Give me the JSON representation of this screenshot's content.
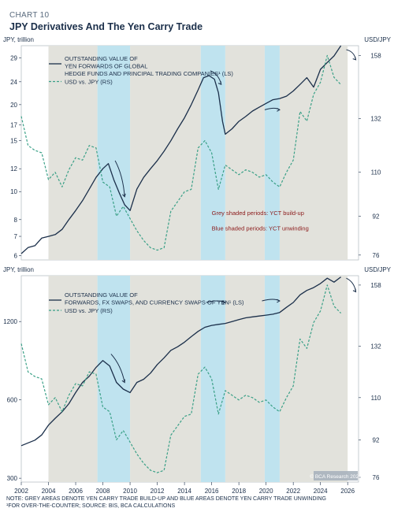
{
  "header": {
    "kicker": "CHART 10",
    "title": "JPY Derivatives And The Yen Carry Trade"
  },
  "notes": {
    "line1": "NOTE: GREY AREAS DENOTE YEN CARRY TRADE BUILD-UP AND BLUE AREAS DENOTE YEN CARRY TRADE UNWINDING",
    "line2": "¹FOR OVER-THE-COUNTER; SOURCE: BIS, BCA CALCULATIONS",
    "source_tag": "© BCA Research 2026"
  },
  "colors": {
    "grey_shade": "#e2e2dc",
    "blue_shade": "#bfe3ef",
    "line_dark": "#1b2f4a",
    "line_usdjpy": "#3aa087",
    "annotation": "#8b1a1a"
  },
  "chart_data": [
    {
      "type": "line",
      "left_unit": "JPY, trillion",
      "right_unit": "USD/JPY",
      "x_ticks": [
        "2002",
        "2004",
        "2006",
        "2008",
        "2010",
        "2012",
        "2014",
        "2016",
        "2018",
        "2020",
        "2022",
        "2024",
        "2026"
      ],
      "xlim": [
        2002,
        2026.8
      ],
      "y_left": {
        "scale": "log",
        "ylim": [
          5.8,
          32
        ],
        "ticks": [
          6,
          7,
          8,
          10,
          12,
          15,
          17,
          20,
          24,
          29
        ]
      },
      "y_right": {
        "ylim": [
          74,
          162
        ],
        "ticks": [
          76,
          92,
          110,
          132,
          158
        ]
      },
      "shaded_periods": {
        "grey": [
          [
            2004.0,
            2007.6
          ],
          [
            2010.0,
            2015.2
          ],
          [
            2017.0,
            2019.9
          ],
          [
            2021.0,
            2026.0
          ]
        ],
        "blue": [
          [
            2007.6,
            2010.0
          ],
          [
            2015.2,
            2017.0
          ],
          [
            2019.9,
            2021.0
          ]
        ]
      },
      "annotations": [
        "Grey shaded periods: YCT build-up",
        "Blue shaded periods: YCT unwinding"
      ],
      "series": [
        {
          "name": "OUTSTANDING VALUE OF YEN FORWARDS OF GLOBAL HEDGE FUNDS AND PRINCIPAL TRADING COMPANIES¹ (LS)",
          "axis": "left",
          "style": "solid",
          "x": [
            2002.0,
            2002.5,
            2003.0,
            2003.5,
            2004.0,
            2004.5,
            2005.0,
            2005.5,
            2006.0,
            2006.5,
            2007.0,
            2007.5,
            2008.0,
            2008.4,
            2008.8,
            2009.2,
            2009.6,
            2010.0,
            2010.5,
            2011.0,
            2011.5,
            2012.0,
            2012.5,
            2013.0,
            2013.5,
            2014.0,
            2014.5,
            2015.0,
            2015.4,
            2015.8,
            2016.2,
            2016.5,
            2016.8,
            2017.0,
            2017.5,
            2018.0,
            2018.5,
            2019.0,
            2019.5,
            2020.0,
            2020.5,
            2021.0,
            2021.5,
            2022.0,
            2022.5,
            2023.0,
            2023.5,
            2024.0,
            2024.5,
            2025.0,
            2025.5
          ],
          "values": [
            6.1,
            6.4,
            6.5,
            6.9,
            7.0,
            7.1,
            7.4,
            8.0,
            8.6,
            9.3,
            10.2,
            11.2,
            12.0,
            12.5,
            11.0,
            9.9,
            9.0,
            8.6,
            10.2,
            11.2,
            12.0,
            12.8,
            13.8,
            15.0,
            16.5,
            18.0,
            20.0,
            22.5,
            24.8,
            25.2,
            24.5,
            22.0,
            17.5,
            15.8,
            16.5,
            17.5,
            18.2,
            19.0,
            19.6,
            20.2,
            20.8,
            21.0,
            21.4,
            22.3,
            23.5,
            24.8,
            23.0,
            26.5,
            28.0,
            29.5,
            32.0
          ]
        },
        {
          "name": "USD vs. JPY (RS)",
          "axis": "right",
          "style": "dashed",
          "x": [
            2002.0,
            2002.5,
            2003.0,
            2003.5,
            2004.0,
            2004.5,
            2005.0,
            2005.5,
            2006.0,
            2006.5,
            2007.0,
            2007.5,
            2008.0,
            2008.5,
            2009.0,
            2009.5,
            2010.0,
            2010.5,
            2011.0,
            2011.5,
            2012.0,
            2012.5,
            2013.0,
            2013.5,
            2014.0,
            2014.5,
            2015.0,
            2015.5,
            2016.0,
            2016.5,
            2017.0,
            2017.5,
            2018.0,
            2018.5,
            2019.0,
            2019.5,
            2020.0,
            2020.5,
            2021.0,
            2021.5,
            2022.0,
            2022.5,
            2023.0,
            2023.5,
            2024.0,
            2024.5,
            2025.0,
            2025.5
          ],
          "values": [
            133,
            121,
            119,
            118,
            107,
            110,
            104,
            111,
            116,
            115,
            121,
            120,
            106,
            104,
            92,
            96,
            91,
            86,
            82,
            79,
            78,
            79,
            94,
            98,
            102,
            103,
            120,
            123,
            118,
            103,
            113,
            111,
            109,
            111,
            110,
            108,
            109,
            106,
            104,
            110,
            115,
            135,
            131,
            142,
            147,
            158,
            149,
            146
          ]
        }
      ]
    },
    {
      "type": "line",
      "left_unit": "JPY, trillion",
      "right_unit": "USD/JPY",
      "x_ticks": [
        "2002",
        "2004",
        "2006",
        "2008",
        "2010",
        "2012",
        "2014",
        "2016",
        "2018",
        "2020",
        "2022",
        "2024",
        "2026"
      ],
      "xlim": [
        2002,
        2026.8
      ],
      "y_left": {
        "scale": "log",
        "ylim": [
          290,
          1800
        ],
        "ticks": [
          300,
          600,
          1200
        ]
      },
      "y_right": {
        "ylim": [
          74,
          162
        ],
        "ticks": [
          76,
          92,
          110,
          132,
          158
        ]
      },
      "shaded_periods": {
        "grey": [
          [
            2004.0,
            2007.6
          ],
          [
            2010.0,
            2015.2
          ],
          [
            2017.0,
            2019.9
          ],
          [
            2021.0,
            2026.0
          ]
        ],
        "blue": [
          [
            2007.6,
            2010.0
          ],
          [
            2015.2,
            2017.0
          ],
          [
            2019.9,
            2021.0
          ]
        ]
      },
      "series": [
        {
          "name": "OUTSTANDING VALUE OF FORWARDS, FX SWAPS, AND CURRENCY SWAPS OF YEN¹ (LS)",
          "axis": "left",
          "style": "solid",
          "x": [
            2002.0,
            2002.5,
            2003.0,
            2003.5,
            2004.0,
            2004.5,
            2005.0,
            2005.5,
            2006.0,
            2006.5,
            2007.0,
            2007.5,
            2008.0,
            2008.5,
            2009.0,
            2009.5,
            2010.0,
            2010.5,
            2011.0,
            2011.5,
            2012.0,
            2012.5,
            2013.0,
            2013.5,
            2014.0,
            2014.5,
            2015.0,
            2015.5,
            2016.0,
            2016.5,
            2017.0,
            2017.5,
            2018.0,
            2018.5,
            2019.0,
            2019.5,
            2020.0,
            2020.5,
            2021.0,
            2021.5,
            2022.0,
            2022.5,
            2023.0,
            2023.5,
            2024.0,
            2024.5,
            2025.0,
            2025.5
          ],
          "values": [
            400,
            410,
            420,
            440,
            480,
            510,
            540,
            580,
            640,
            700,
            740,
            800,
            850,
            810,
            700,
            660,
            640,
            700,
            720,
            760,
            820,
            870,
            930,
            960,
            1000,
            1050,
            1100,
            1140,
            1160,
            1170,
            1180,
            1200,
            1220,
            1240,
            1250,
            1260,
            1270,
            1280,
            1300,
            1360,
            1420,
            1520,
            1580,
            1620,
            1680,
            1760,
            1700,
            1780
          ]
        },
        {
          "name": "USD vs. JPY (RS)",
          "axis": "right",
          "style": "dashed",
          "x": [
            2002.0,
            2002.5,
            2003.0,
            2003.5,
            2004.0,
            2004.5,
            2005.0,
            2005.5,
            2006.0,
            2006.5,
            2007.0,
            2007.5,
            2008.0,
            2008.5,
            2009.0,
            2009.5,
            2010.0,
            2010.5,
            2011.0,
            2011.5,
            2012.0,
            2012.5,
            2013.0,
            2013.5,
            2014.0,
            2014.5,
            2015.0,
            2015.5,
            2016.0,
            2016.5,
            2017.0,
            2017.5,
            2018.0,
            2018.5,
            2019.0,
            2019.5,
            2020.0,
            2020.5,
            2021.0,
            2021.5,
            2022.0,
            2022.5,
            2023.0,
            2023.5,
            2024.0,
            2024.5,
            2025.0,
            2025.5
          ],
          "values": [
            133,
            121,
            119,
            118,
            107,
            110,
            104,
            111,
            116,
            115,
            121,
            120,
            106,
            104,
            92,
            96,
            91,
            86,
            82,
            79,
            78,
            79,
            94,
            98,
            102,
            103,
            120,
            123,
            118,
            103,
            113,
            111,
            109,
            111,
            110,
            108,
            109,
            106,
            104,
            110,
            115,
            135,
            131,
            142,
            147,
            158,
            149,
            146
          ]
        }
      ]
    }
  ]
}
